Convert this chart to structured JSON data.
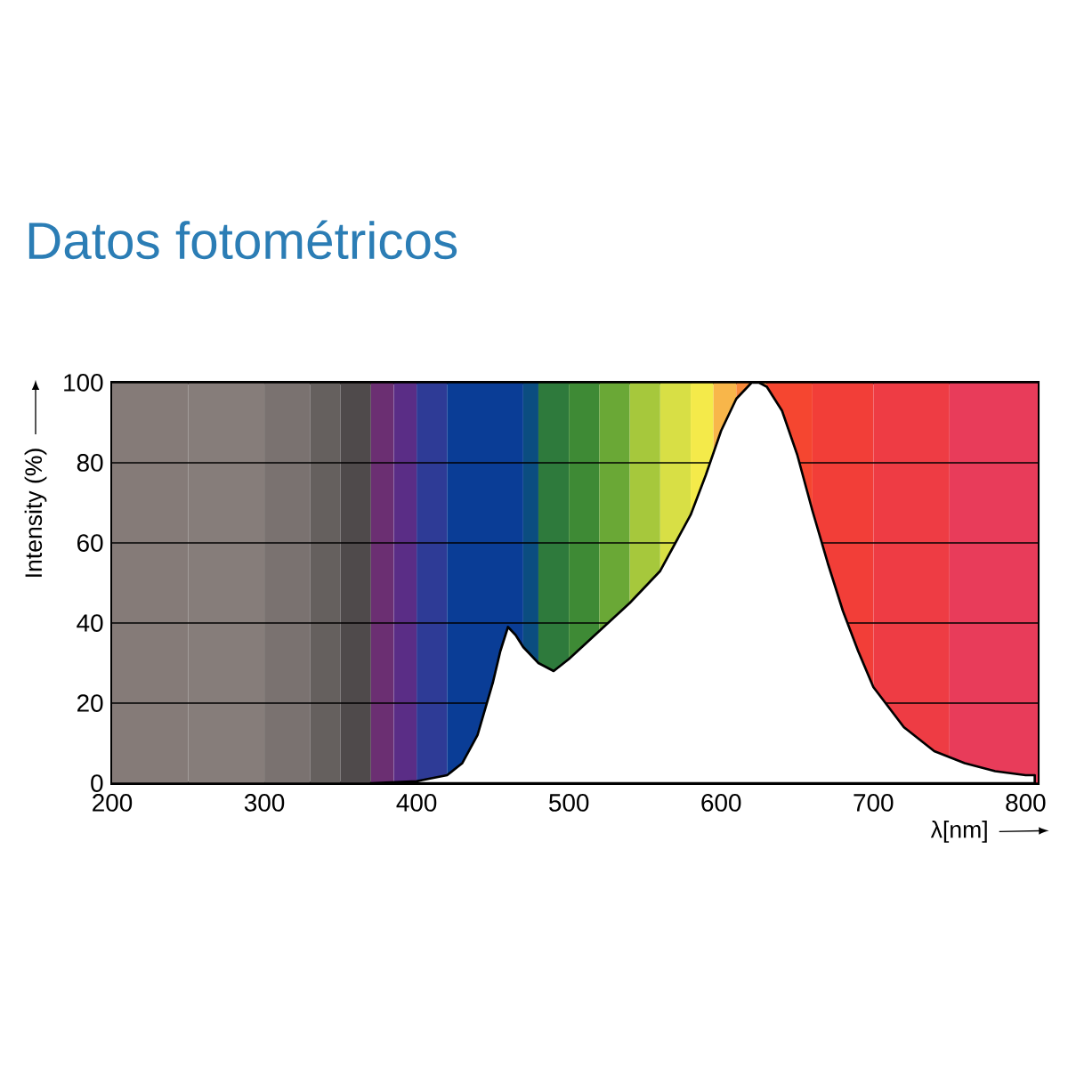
{
  "chart_data": {
    "type": "area",
    "title": "Datos fotométricos",
    "xlabel": "λ[nm]",
    "ylabel": "Intensity (%)",
    "x": [
      370,
      400,
      420,
      430,
      440,
      450,
      455,
      460,
      465,
      470,
      480,
      490,
      500,
      520,
      540,
      560,
      580,
      590,
      600,
      610,
      620,
      625,
      630,
      640,
      650,
      660,
      670,
      680,
      690,
      700,
      720,
      740,
      760,
      780,
      800,
      806
    ],
    "series": [
      {
        "color": "#ffffff",
        "values": [
          0,
          0.5,
          2,
          5,
          12,
          25,
          33,
          39,
          37,
          34,
          30,
          28,
          31,
          38,
          45,
          53,
          67,
          77,
          88,
          96,
          100,
          100,
          99,
          93,
          82,
          68,
          55,
          43,
          33,
          24,
          14,
          8,
          5,
          3,
          2,
          2
        ]
      }
    ],
    "xlim": [
      200,
      808
    ],
    "ylim": [
      0,
      100
    ],
    "xticks": [
      200,
      300,
      400,
      500,
      600,
      700,
      800
    ],
    "yticks": [
      0,
      20,
      40,
      60,
      80,
      100
    ],
    "grid": "y",
    "bands": [
      {
        "axis": "x",
        "from": 200,
        "to": 250,
        "color": "#857b78"
      },
      {
        "axis": "x",
        "from": 250,
        "to": 300,
        "color": "#867d7a"
      },
      {
        "axis": "x",
        "from": 300,
        "to": 330,
        "color": "#7a7270"
      },
      {
        "axis": "x",
        "from": 330,
        "to": 350,
        "color": "#65605e"
      },
      {
        "axis": "x",
        "from": 350,
        "to": 370,
        "color": "#4f4a4b"
      },
      {
        "axis": "x",
        "from": 370,
        "to": 385,
        "color": "#6b2f72"
      },
      {
        "axis": "x",
        "from": 385,
        "to": 400,
        "color": "#5a2d86"
      },
      {
        "axis": "x",
        "from": 400,
        "to": 420,
        "color": "#2e3b96"
      },
      {
        "axis": "x",
        "from": 420,
        "to": 470,
        "color": "#0a3d96"
      },
      {
        "axis": "x",
        "from": 470,
        "to": 480,
        "color": "#0b4d80"
      },
      {
        "axis": "x",
        "from": 480,
        "to": 500,
        "color": "#2e7a3c"
      },
      {
        "axis": "x",
        "from": 500,
        "to": 520,
        "color": "#3e8a35"
      },
      {
        "axis": "x",
        "from": 520,
        "to": 540,
        "color": "#6aa836"
      },
      {
        "axis": "x",
        "from": 540,
        "to": 560,
        "color": "#a6c83c"
      },
      {
        "axis": "x",
        "from": 560,
        "to": 580,
        "color": "#d8df45"
      },
      {
        "axis": "x",
        "from": 580,
        "to": 595,
        "color": "#f4ea4a"
      },
      {
        "axis": "x",
        "from": 595,
        "to": 610,
        "color": "#f8b64a"
      },
      {
        "axis": "x",
        "from": 610,
        "to": 630,
        "color": "#fa8a3a"
      },
      {
        "axis": "x",
        "from": 630,
        "to": 660,
        "color": "#f54630"
      },
      {
        "axis": "x",
        "from": 660,
        "to": 700,
        "color": "#f23e38"
      },
      {
        "axis": "x",
        "from": 700,
        "to": 750,
        "color": "#ee3c44"
      },
      {
        "axis": "x",
        "from": 750,
        "to": 808,
        "color": "#e83c5a"
      }
    ]
  }
}
